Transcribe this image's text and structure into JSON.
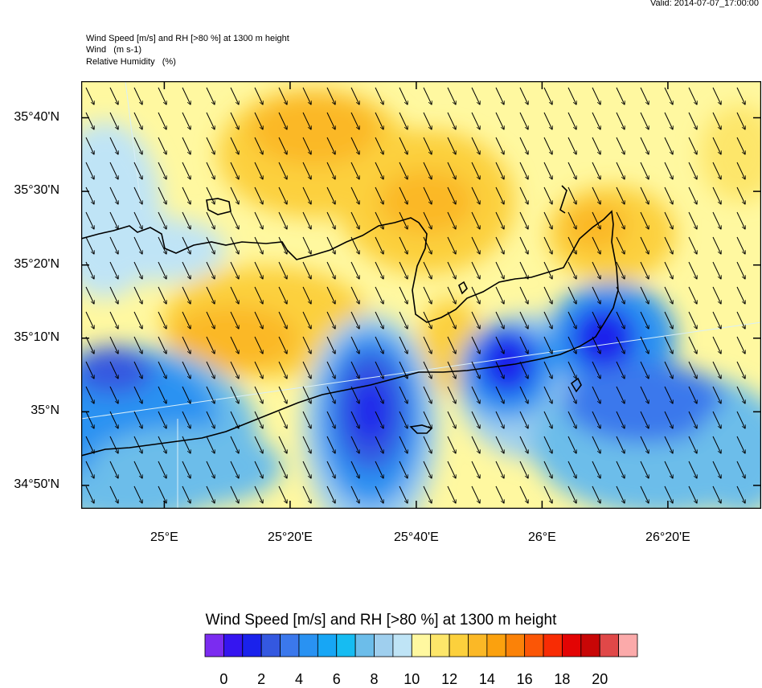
{
  "valid_time": "Valid: 2014-07-07_17:00:00",
  "header": {
    "line1": "Wind Speed [m/s] and RH [>80 %] at 1300 m height",
    "line2": "Wind   (m s-1)",
    "line3": "Relative Humidity   (%)"
  },
  "map": {
    "lat_labels": [
      {
        "text": "35°40'N",
        "lat": 35.667
      },
      {
        "text": "35°30'N",
        "lat": 35.5
      },
      {
        "text": "35°20'N",
        "lat": 35.333
      },
      {
        "text": "35°10'N",
        "lat": 35.167
      },
      {
        "text": "35°N",
        "lat": 35.0
      },
      {
        "text": "34°50'N",
        "lat": 34.833
      }
    ],
    "lon_labels": [
      {
        "text": "25°E",
        "lon": 25.0
      },
      {
        "text": "25°20'E",
        "lon": 25.333
      },
      {
        "text": "25°40'E",
        "lon": 25.667
      },
      {
        "text": "26°E",
        "lon": 26.0
      },
      {
        "text": "26°20'E",
        "lon": 26.333
      }
    ],
    "wind_direction": "north-northwest"
  },
  "colorbar": {
    "title": "Wind Speed [m/s] and RH [>80 %] at 1300 m height",
    "colors": [
      "#7b2cf0",
      "#3515f0",
      "#1a22ec",
      "#3458e0",
      "#3b78ec",
      "#2992f2",
      "#17a6f5",
      "#16bcf2",
      "#6cbdea",
      "#9fcfee",
      "#bfe4f6",
      "#fff8a0",
      "#fde66a",
      "#fcd03c",
      "#fbb826",
      "#fba10e",
      "#fb8208",
      "#fb5606",
      "#f82c04",
      "#e30404",
      "#c80606",
      "#e04848",
      "#fbaaaa"
    ],
    "labels": [
      "0",
      "2",
      "4",
      "6",
      "8",
      "10",
      "12",
      "14",
      "16",
      "18",
      "20"
    ]
  },
  "chart_data": {
    "type": "heatmap",
    "title": "Wind Speed [m/s] and RH [>80 %] at 1300 m height",
    "xlabel": "",
    "ylabel": "",
    "xlim": [
      24.78,
      26.58
    ],
    "ylim": [
      34.78,
      35.75
    ],
    "x_ticks": [
      "25°E",
      "25°20'E",
      "25°40'E",
      "26°E",
      "26°20'E"
    ],
    "y_ticks": [
      "35°40'N",
      "35°30'N",
      "35°20'N",
      "35°10'N",
      "35°N",
      "34°50'N"
    ],
    "value_range": [
      0,
      20
    ],
    "units": "m/s"
  }
}
